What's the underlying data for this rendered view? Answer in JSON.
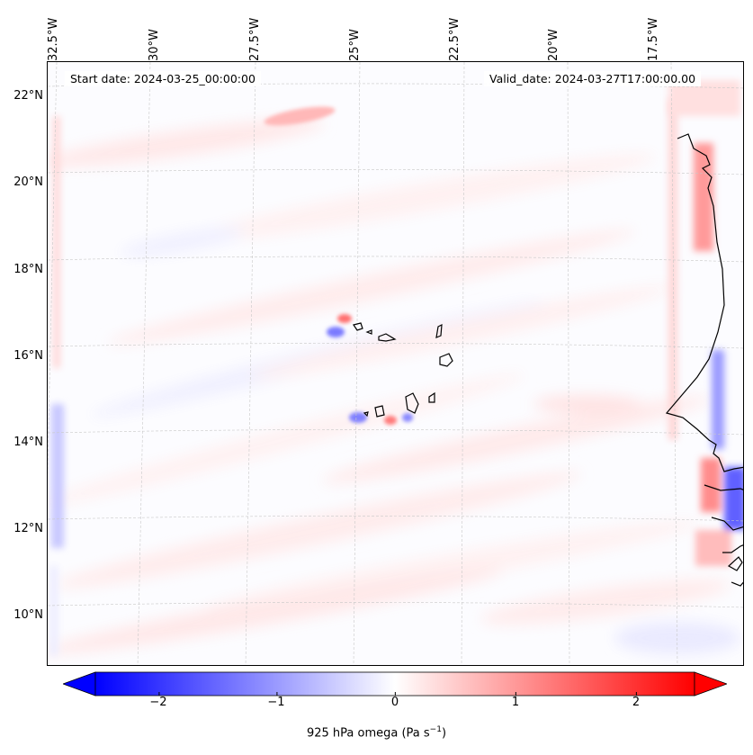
{
  "map": {
    "start_date": "Start date: 2024-03-25_00:00:00",
    "valid_date": "Valid_date: 2024-03-27T17:00:00.00",
    "lon_labels": [
      "32.5°W",
      "30°W",
      "27.5°W",
      "25°W",
      "22.5°W",
      "20°W",
      "17.5°W"
    ],
    "lat_labels": [
      "22°N",
      "20°N",
      "18°N",
      "16°N",
      "14°N",
      "12°N",
      "10°N"
    ],
    "field": "925 hPa omega",
    "extent": {
      "lon_min": -33.0,
      "lon_max": -15.0,
      "lat_min": 8.9,
      "lat_max": 22.8
    },
    "colormap": {
      "name": "bwr",
      "negative": "#0000ff",
      "zero": "#ffffff",
      "positive": "#ff0000"
    }
  },
  "colorbar": {
    "ticks": [
      "−2",
      "−1",
      "0",
      "1",
      "2"
    ],
    "tick_values": [
      -2,
      -1,
      0,
      1,
      2
    ],
    "range": [
      -2.5,
      2.5
    ],
    "extend": "both",
    "label_main": "925 hPa omega (Pa s",
    "label_exp": "−1",
    "label_tail": ")"
  }
}
